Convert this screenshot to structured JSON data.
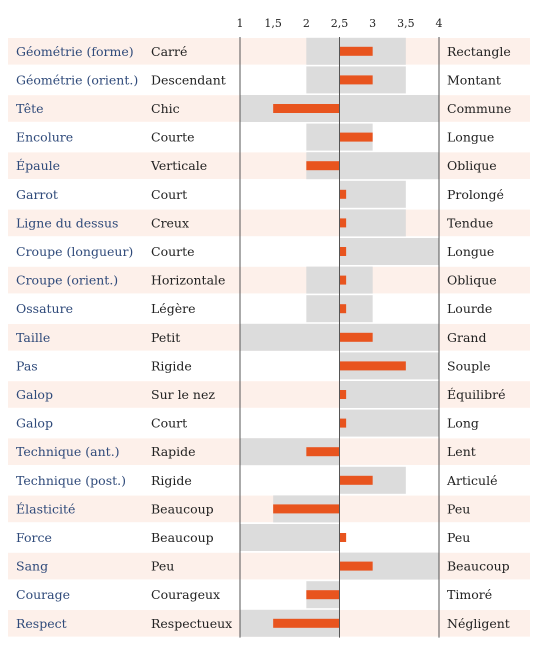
{
  "chart_data": {
    "type": "bar",
    "title": "",
    "xlim": [
      1,
      4
    ],
    "ticks": [
      "1",
      "1,5",
      "2",
      "2,5",
      "3",
      "3,5",
      "4"
    ],
    "tick_values": [
      1,
      1.5,
      2,
      2.5,
      3,
      3.5,
      4
    ],
    "center": 2.5,
    "colors": {
      "range": "#dcdcdc",
      "bar": "#e8541e",
      "stripe": "#fdf0ea",
      "trait_text": "#2f4a7a",
      "axis": "#555555"
    },
    "rows": [
      {
        "trait": "Géométrie (forme)",
        "low": "Carré",
        "high": "Rectangle",
        "range": [
          2,
          3.5
        ],
        "value": 3
      },
      {
        "trait": "Géométrie (orient.)",
        "low": "Descendant",
        "high": "Montant",
        "range": [
          2,
          3.5
        ],
        "value": 3
      },
      {
        "trait": "Tête",
        "low": "Chic",
        "high": "Commune",
        "range": [
          1,
          4
        ],
        "value": 1.5
      },
      {
        "trait": "Encolure",
        "low": "Courte",
        "high": "Longue",
        "range": [
          2,
          3
        ],
        "value": 3
      },
      {
        "trait": "Épaule",
        "low": "Verticale",
        "high": "Oblique",
        "range": [
          2,
          4
        ],
        "value": 2
      },
      {
        "trait": "Garrot",
        "low": "Court",
        "high": "Prolongé",
        "range": [
          2.5,
          3.5
        ],
        "value": 2.6
      },
      {
        "trait": "Ligne du dessus",
        "low": "Creux",
        "high": "Tendue",
        "range": [
          2.5,
          3.5
        ],
        "value": 2.6
      },
      {
        "trait": "Croupe (longueur)",
        "low": "Courte",
        "high": "Longue",
        "range": [
          2.5,
          4
        ],
        "value": 2.6
      },
      {
        "trait": "Croupe (orient.)",
        "low": "Horizontale",
        "high": "Oblique",
        "range": [
          2,
          3
        ],
        "value": 2.6
      },
      {
        "trait": "Ossature",
        "low": "Légère",
        "high": "Lourde",
        "range": [
          2,
          3
        ],
        "value": 2.6
      },
      {
        "trait": "Taille",
        "low": "Petit",
        "high": "Grand",
        "range": [
          1,
          4
        ],
        "value": 3
      },
      {
        "trait": "Pas",
        "low": "Rigide",
        "high": "Souple",
        "range": [
          2.5,
          4
        ],
        "value": 3.5
      },
      {
        "trait": "Galop",
        "low": "Sur le nez",
        "high": "Équilibré",
        "range": [
          2.5,
          4
        ],
        "value": 2.6
      },
      {
        "trait": "Galop",
        "low": "Court",
        "high": "Long",
        "range": [
          2.5,
          4
        ],
        "value": 2.6
      },
      {
        "trait": "Technique (ant.)",
        "low": "Rapide",
        "high": "Lent",
        "range": [
          1,
          2.5
        ],
        "value": 2
      },
      {
        "trait": "Technique (post.)",
        "low": "Rigide",
        "high": "Articulé",
        "range": [
          2.5,
          3.5
        ],
        "value": 3
      },
      {
        "trait": "Élasticité",
        "low": "Beaucoup",
        "high": "Peu",
        "range": [
          1.5,
          2.5
        ],
        "value": 1.5
      },
      {
        "trait": "Force",
        "low": "Beaucoup",
        "high": "Peu",
        "range": [
          1,
          2.5
        ],
        "value": 2.6
      },
      {
        "trait": "Sang",
        "low": "Peu",
        "high": "Beaucoup",
        "range": [
          2.5,
          4
        ],
        "value": 3
      },
      {
        "trait": "Courage",
        "low": "Courageux",
        "high": "Timoré",
        "range": [
          2,
          2.5
        ],
        "value": 2
      },
      {
        "trait": "Respect",
        "low": "Respectueux",
        "high": "Négligent",
        "range": [
          1,
          2.5
        ],
        "value": 1.5
      }
    ]
  }
}
